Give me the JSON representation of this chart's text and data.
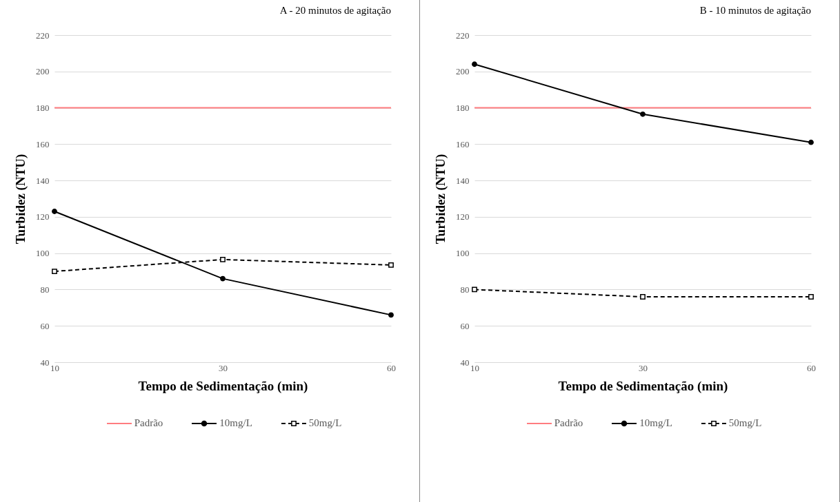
{
  "chart_data": [
    {
      "type": "line",
      "title": "A - 20 minutos de agitação",
      "xlabel": "Tempo de Sedimentação (min)",
      "ylabel": "Turbidez (NTU)",
      "categories": [
        "10",
        "30",
        "60"
      ],
      "ylim": [
        40,
        220
      ],
      "yticks": [
        40,
        60,
        80,
        100,
        120,
        140,
        160,
        180,
        200,
        220
      ],
      "grid": "y",
      "legend": "bottom",
      "series": [
        {
          "name": "Padrão",
          "color": "#ff7c80",
          "values": [
            180,
            180,
            180
          ],
          "marker": "none",
          "line_style": "solid"
        },
        {
          "name": "10mg/L",
          "color": "#000000",
          "values": [
            123,
            86,
            66
          ],
          "marker": "circle",
          "line_style": "solid"
        },
        {
          "name": "50mg/L",
          "color": "#000000",
          "values": [
            90,
            96.5,
            93.5
          ],
          "marker": "square",
          "line_style": "dashed"
        }
      ]
    },
    {
      "type": "line",
      "title": "B - 10 minutos de agitação",
      "xlabel": "Tempo de Sedimentação (min)",
      "ylabel": "Turbidez (NTU)",
      "categories": [
        "10",
        "30",
        "60"
      ],
      "ylim": [
        40,
        220
      ],
      "yticks": [
        40,
        60,
        80,
        100,
        120,
        140,
        160,
        180,
        200,
        220
      ],
      "grid": "y",
      "legend": "bottom",
      "series": [
        {
          "name": "Padrão",
          "color": "#ff7c80",
          "values": [
            180,
            180,
            180
          ],
          "marker": "none",
          "line_style": "solid"
        },
        {
          "name": "10mg/L",
          "color": "#000000",
          "values": [
            204,
            176.5,
            161
          ],
          "marker": "circle",
          "line_style": "solid"
        },
        {
          "name": "50mg/L",
          "color": "#000000",
          "values": [
            80,
            76,
            76
          ],
          "marker": "square",
          "line_style": "dashed"
        }
      ]
    }
  ]
}
